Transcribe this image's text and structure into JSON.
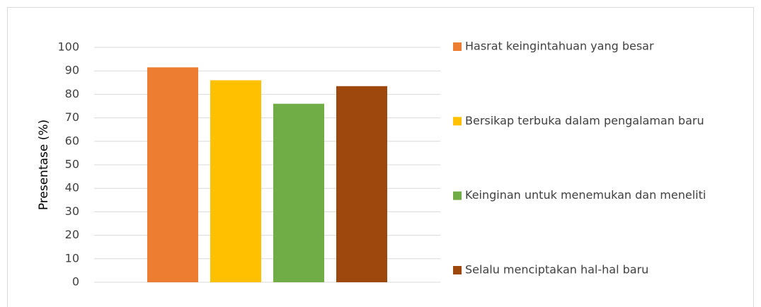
{
  "chart_data": {
    "type": "bar",
    "y_label": "Presentase (%)",
    "categories": [
      null
    ],
    "series": [
      {
        "name": "Hasrat keingintahuan yang besar",
        "color": "#ed7d31",
        "values": [
          91.5
        ]
      },
      {
        "name": "Bersikap terbuka dalam pengalaman baru",
        "color": "#ffc000",
        "values": [
          86
        ]
      },
      {
        "name": "Keinginan untuk menemukan dan meneliti",
        "color": "#70ad47",
        "values": [
          76
        ]
      },
      {
        "name": "Selalu menciptakan hal-hal baru",
        "color": "#9e480e",
        "values": [
          83.5
        ]
      }
    ],
    "ylim": [
      0,
      100
    ],
    "yticks": [
      0,
      10,
      20,
      30,
      40,
      50,
      60,
      70,
      80,
      90,
      100
    ],
    "grid": true,
    "legend": "right"
  }
}
